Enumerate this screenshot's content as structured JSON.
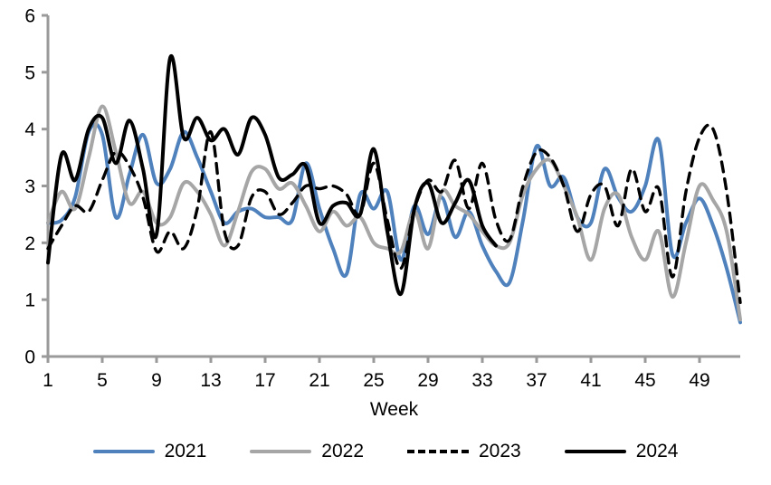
{
  "chart_data": {
    "type": "line",
    "title": "",
    "xlabel": "Week",
    "ylabel": "",
    "xlim": [
      1,
      52
    ],
    "ylim": [
      0,
      6
    ],
    "x_ticks": [
      1,
      5,
      9,
      13,
      17,
      21,
      25,
      29,
      33,
      37,
      41,
      45,
      49
    ],
    "y_ticks": [
      0,
      1,
      2,
      3,
      4,
      5,
      6
    ],
    "grid": false,
    "legend_position": "bottom",
    "axis_color": "#9a9a9a",
    "smoothing": "spline",
    "x_unit": "week_number",
    "series": [
      {
        "name": "2021",
        "color": "#4F81BD",
        "style": "solid",
        "start_week": 1,
        "values": [
          2.35,
          2.4,
          2.8,
          3.95,
          3.9,
          2.45,
          3.2,
          3.9,
          3.05,
          3.3,
          3.95,
          3.5,
          2.9,
          2.35,
          2.55,
          2.6,
          2.45,
          2.45,
          2.4,
          3.4,
          2.6,
          1.9,
          1.45,
          2.85,
          2.6,
          2.9,
          1.7,
          2.65,
          2.15,
          2.8,
          2.1,
          2.55,
          1.95,
          1.5,
          1.3,
          2.4,
          3.7,
          3.0,
          3.15,
          2.45,
          2.35,
          3.3,
          2.8,
          2.55,
          3.0,
          3.8,
          1.8,
          2.35,
          2.78,
          2.3,
          1.55,
          0.6
        ]
      },
      {
        "name": "2022",
        "color": "#A6A6A6",
        "style": "solid",
        "start_week": 1,
        "values": [
          2.35,
          2.9,
          2.6,
          3.5,
          4.4,
          3.6,
          2.7,
          2.9,
          2.35,
          2.45,
          3.05,
          2.9,
          2.5,
          1.95,
          2.55,
          3.25,
          3.3,
          2.95,
          3.05,
          2.65,
          2.2,
          2.55,
          2.3,
          2.45,
          2.0,
          1.9,
          1.85,
          2.55,
          1.9,
          2.9,
          2.65,
          2.5,
          2.2,
          1.95,
          2.0,
          2.85,
          3.3,
          3.45,
          3.0,
          2.45,
          1.7,
          2.6,
          2.85,
          2.1,
          1.7,
          2.2,
          1.05,
          2.0,
          3.0,
          2.75,
          2.2,
          0.65
        ]
      },
      {
        "name": "2023",
        "color": "#000000",
        "style": "dashed",
        "start_week": 1,
        "values": [
          1.9,
          2.3,
          2.65,
          2.55,
          3.1,
          3.6,
          3.35,
          2.8,
          1.85,
          2.2,
          1.9,
          2.6,
          3.95,
          2.2,
          1.95,
          2.8,
          2.9,
          2.5,
          2.7,
          3.0,
          2.95,
          3.0,
          2.85,
          2.5,
          3.4,
          2.4,
          1.55,
          2.6,
          3.1,
          2.9,
          3.45,
          2.6,
          3.4,
          2.4,
          2.05,
          3.0,
          3.6,
          3.5,
          3.0,
          2.2,
          2.85,
          3.0,
          2.3,
          3.3,
          2.55,
          2.95,
          1.4,
          2.9,
          3.85,
          4.0,
          2.9,
          0.95
        ]
      },
      {
        "name": "2024",
        "color": "#000000",
        "style": "solid",
        "start_week": 1,
        "values": [
          1.65,
          3.55,
          3.1,
          4.0,
          4.2,
          3.4,
          4.15,
          3.3,
          2.15,
          5.25,
          3.85,
          4.2,
          3.8,
          4.0,
          3.55,
          4.2,
          3.9,
          3.15,
          3.2,
          3.35,
          2.35,
          2.65,
          2.7,
          2.5,
          3.65,
          2.2,
          1.1,
          2.6,
          3.05,
          2.35,
          2.7,
          3.1,
          2.3,
          1.95
        ]
      }
    ]
  }
}
